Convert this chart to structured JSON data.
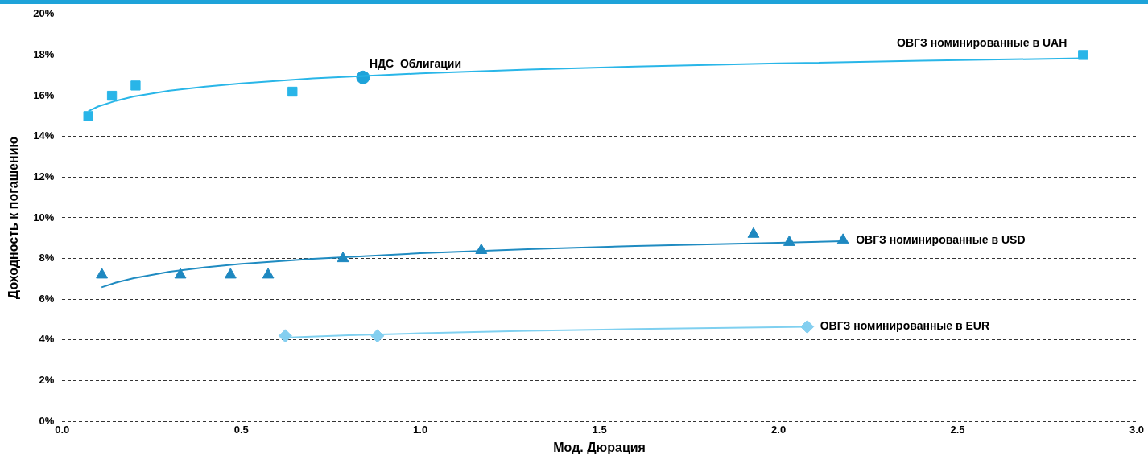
{
  "chart_data": {
    "type": "scatter",
    "xlabel": "Мод. Дюрация",
    "ylabel": "Доходность к погашению",
    "xlim": [
      0,
      3
    ],
    "xticks": [
      {
        "value": 0,
        "label": "0.0"
      },
      {
        "value": 0.5,
        "label": "0.5"
      },
      {
        "value": 1,
        "label": "1.0"
      },
      {
        "value": 1.5,
        "label": "1.5"
      },
      {
        "value": 2,
        "label": "2.0"
      },
      {
        "value": 2.5,
        "label": "2.5"
      },
      {
        "value": 3,
        "label": "3.0"
      }
    ],
    "ylim": [
      0,
      20
    ],
    "yticks": [
      {
        "value": 0,
        "label": "0%"
      },
      {
        "value": 2,
        "label": "2%"
      },
      {
        "value": 4,
        "label": "4%"
      },
      {
        "value": 6,
        "label": "6%"
      },
      {
        "value": 8,
        "label": "8%"
      },
      {
        "value": 10,
        "label": "10%"
      },
      {
        "value": 12,
        "label": "12%"
      },
      {
        "value": 14,
        "label": "14%"
      },
      {
        "value": 16,
        "label": "16%"
      },
      {
        "value": 18,
        "label": "18%"
      },
      {
        "value": 20,
        "label": "20%"
      }
    ],
    "grid": "y",
    "legend": false,
    "series": [
      {
        "type": "line",
        "color": "#29b6e8",
        "marker": "none",
        "x": [
          0.073,
          0.1,
          0.15,
          0.2,
          0.3,
          0.4,
          0.5,
          0.7,
          1.0,
          1.3,
          1.6,
          2.0,
          2.4,
          2.85
        ],
        "values": [
          15.24,
          15.47,
          15.75,
          15.96,
          16.25,
          16.45,
          16.61,
          16.85,
          17.1,
          17.29,
          17.43,
          17.59,
          17.72,
          17.84
        ]
      },
      {
        "type": "line",
        "color": "#1f8bc1",
        "marker": "none",
        "x": [
          0.11,
          0.15,
          0.2,
          0.3,
          0.4,
          0.5,
          0.7,
          1.0,
          1.3,
          1.6,
          2.0,
          2.18
        ],
        "values": [
          6.59,
          6.82,
          7.04,
          7.35,
          7.57,
          7.74,
          7.99,
          8.26,
          8.46,
          8.62,
          8.78,
          8.85
        ]
      },
      {
        "type": "line",
        "color": "#7fd0f0",
        "marker": "none",
        "x": [
          0.62,
          0.8,
          1.0,
          1.3,
          1.6,
          2.08
        ],
        "values": [
          4.12,
          4.23,
          4.33,
          4.45,
          4.54,
          4.65
        ]
      },
      {
        "name": "ОВГЗ номинированные в UAH",
        "color": "#29b5e8",
        "marker": "square",
        "x": [
          0.073,
          0.139,
          0.205,
          0.643,
          2.85
        ],
        "values": [
          15.0,
          16.0,
          16.5,
          16.2,
          18.0
        ]
      },
      {
        "name": "НДС  Облигации",
        "color": "#1ea3d9",
        "marker": "circle",
        "x": [
          0.84
        ],
        "values": [
          16.9
        ]
      },
      {
        "name": "ОВГЗ номинированные в USD",
        "color": "#1e88c0",
        "marker": "triangle",
        "x": [
          0.111,
          0.33,
          0.47,
          0.575,
          0.784,
          1.17,
          1.93,
          2.03,
          2.18
        ],
        "values": [
          7.2,
          7.2,
          7.2,
          7.2,
          8.0,
          8.4,
          9.2,
          8.8,
          8.9
        ]
      },
      {
        "name": "ОВГЗ номинированные в EUR",
        "color": "#85cff0",
        "marker": "diamond",
        "x": [
          0.623,
          0.88,
          2.08
        ],
        "values": [
          4.2,
          4.2,
          4.65
        ]
      }
    ]
  }
}
